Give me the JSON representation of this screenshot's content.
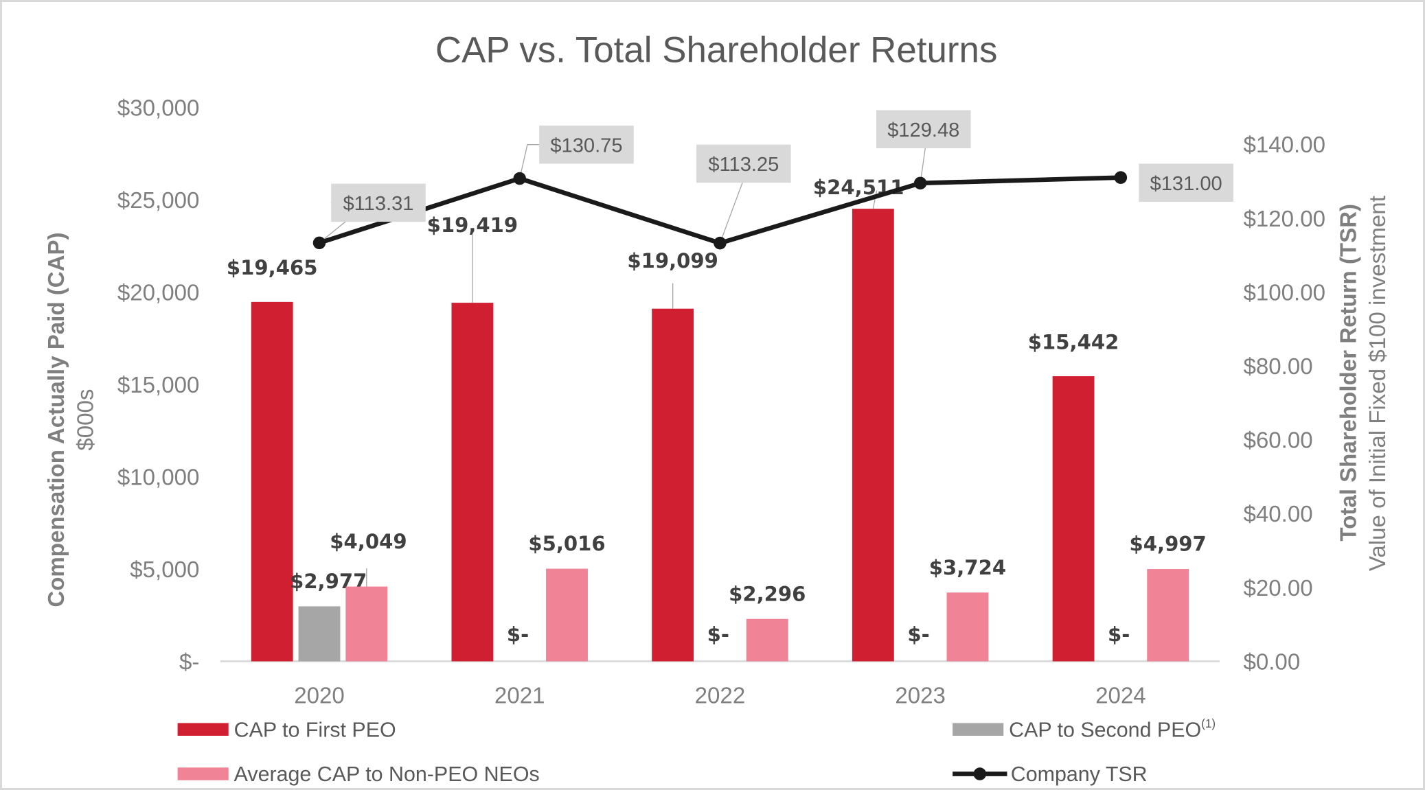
{
  "chart_data": {
    "type": "bar",
    "title": "CAP vs. Total Shareholder Returns",
    "categories": [
      "2020",
      "2021",
      "2022",
      "2023",
      "2024"
    ],
    "ylabel": "Compensation Actually Paid (CAP)",
    "ylabel_sub": "$000s",
    "y2label": "Total Shareholder Return (TSR)",
    "y2label_sub": "Value of Initial Fixed $100 investment",
    "ylim": [
      0,
      30000
    ],
    "y2lim": [
      0,
      150
    ],
    "yticks": [
      0,
      5000,
      10000,
      15000,
      20000,
      25000,
      30000
    ],
    "ytick_labels": [
      "$-",
      "$5,000",
      "$10,000",
      "$15,000",
      "$20,000",
      "$25,000",
      "$30,000"
    ],
    "y2ticks": [
      0,
      20,
      40,
      60,
      80,
      100,
      120,
      140
    ],
    "y2tick_labels": [
      "$0.00",
      "$20.00",
      "$40.00",
      "$60.00",
      "$80.00",
      "$100.00",
      "$120.00",
      "$140.00"
    ],
    "grid": false,
    "legend_position": "bottom",
    "series": [
      {
        "name": "CAP to First PEO",
        "kind": "bar",
        "axis": "left",
        "color": "#d01f30",
        "values": [
          19465,
          19419,
          19099,
          24511,
          15442
        ],
        "labels": [
          "$19,465",
          "$19,419",
          "$19,099",
          "$24,511",
          "$15,442"
        ]
      },
      {
        "name": "CAP to Second PEO",
        "name_superscript": "(1)",
        "kind": "bar",
        "axis": "left",
        "color": "#a6a6a6",
        "values": [
          2977,
          0,
          0,
          0,
          0
        ],
        "labels": [
          "$2,977",
          "$-",
          "$-",
          "$-",
          "$-"
        ]
      },
      {
        "name": "Average CAP to Non-PEO NEOs",
        "kind": "bar",
        "axis": "left",
        "color": "#f08396",
        "values": [
          4049,
          5016,
          2296,
          3724,
          4997
        ],
        "labels": [
          "$4,049",
          "$5,016",
          "$2,296",
          "$3,724",
          "$4,997"
        ]
      },
      {
        "name": "Company TSR",
        "kind": "line",
        "axis": "right",
        "color": "#1a1a1a",
        "values": [
          113.31,
          130.75,
          113.25,
          129.48,
          131.0
        ],
        "labels": [
          "$113.31",
          "$130.75",
          "$113.25",
          "$129.48",
          "$131.00"
        ]
      }
    ]
  }
}
